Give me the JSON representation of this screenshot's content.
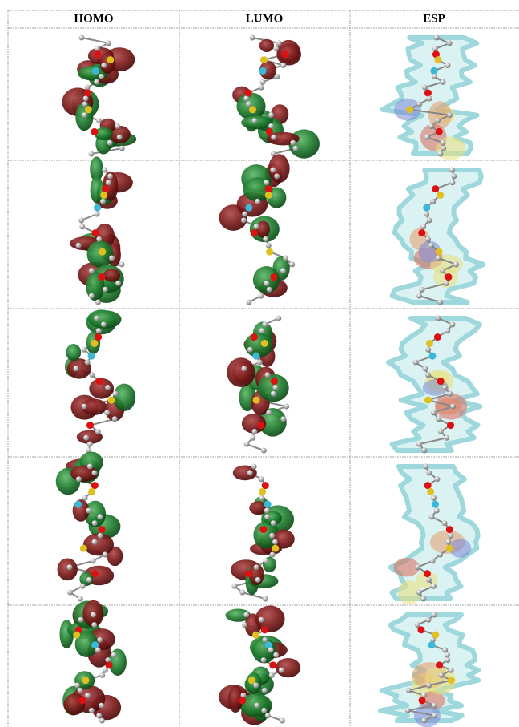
{
  "table": {
    "header": [
      "HOMO",
      "LUMO",
      "ESP"
    ]
  }
}
